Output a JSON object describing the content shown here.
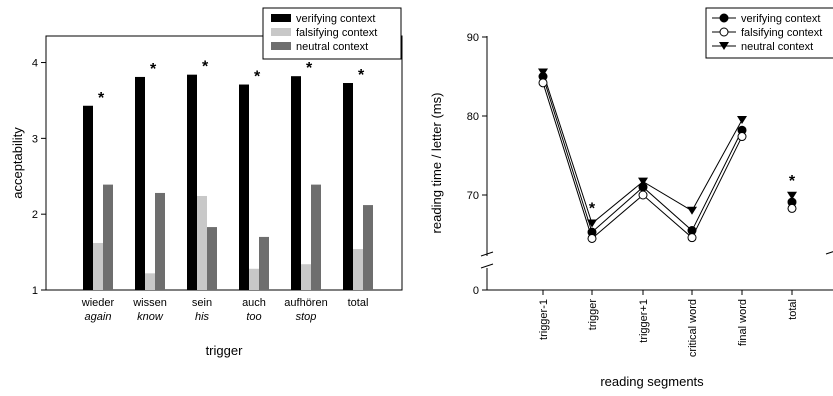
{
  "chart_data": [
    {
      "type": "bar",
      "categories": [
        "wieder",
        "wissen",
        "sein",
        "auch",
        "aufhören",
        "total"
      ],
      "category_glosses": [
        "again",
        "know",
        "his",
        "too",
        "stop",
        ""
      ],
      "series": [
        {
          "name": "verifying context",
          "values": [
            3.43,
            3.81,
            3.84,
            3.71,
            3.82,
            3.73
          ],
          "color": "#000000"
        },
        {
          "name": "falsifying context",
          "values": [
            1.62,
            1.22,
            2.24,
            1.28,
            1.34,
            1.54
          ],
          "color": "#c8c8c8"
        },
        {
          "name": "neutral context",
          "values": [
            2.39,
            2.28,
            1.83,
            1.7,
            2.39,
            2.12
          ],
          "color": "#6e6e6e"
        }
      ],
      "significance": [
        "*",
        "*",
        "*",
        "*",
        "*",
        "*"
      ],
      "xlabel": "trigger",
      "ylabel": "acceptability",
      "ylim": [
        1,
        4.35
      ],
      "yticks": [
        1,
        2,
        3,
        4
      ],
      "grid": false,
      "legend": "top-right"
    },
    {
      "type": "line",
      "categories": [
        "trigger-1",
        "trigger",
        "trigger+1",
        "critical word",
        "final word",
        "total"
      ],
      "series": [
        {
          "name": "verifying context",
          "marker": "filled-circle",
          "values": [
            85.0,
            65.3,
            71.0,
            65.5,
            78.2,
            69.1
          ]
        },
        {
          "name": "falsifying context",
          "marker": "open-circle",
          "values": [
            84.2,
            64.5,
            70.0,
            64.6,
            77.4,
            68.3
          ]
        },
        {
          "name": "neutral context",
          "marker": "filled-triangle-down",
          "values": [
            85.5,
            66.4,
            71.7,
            68.0,
            79.5,
            69.9
          ]
        }
      ],
      "connect_points": [
        0,
        1,
        2,
        3,
        4
      ],
      "significance_marks": [
        {
          "category": "trigger",
          "text": "*"
        },
        {
          "category": "total",
          "text": "*"
        }
      ],
      "xlabel": "reading segments",
      "ylabel": "reading time / letter (ms)",
      "yticks": [
        0,
        70,
        80,
        90
      ],
      "axis_break": true,
      "ylim": [
        62,
        90
      ],
      "grid": false,
      "legend": "top-right"
    }
  ]
}
